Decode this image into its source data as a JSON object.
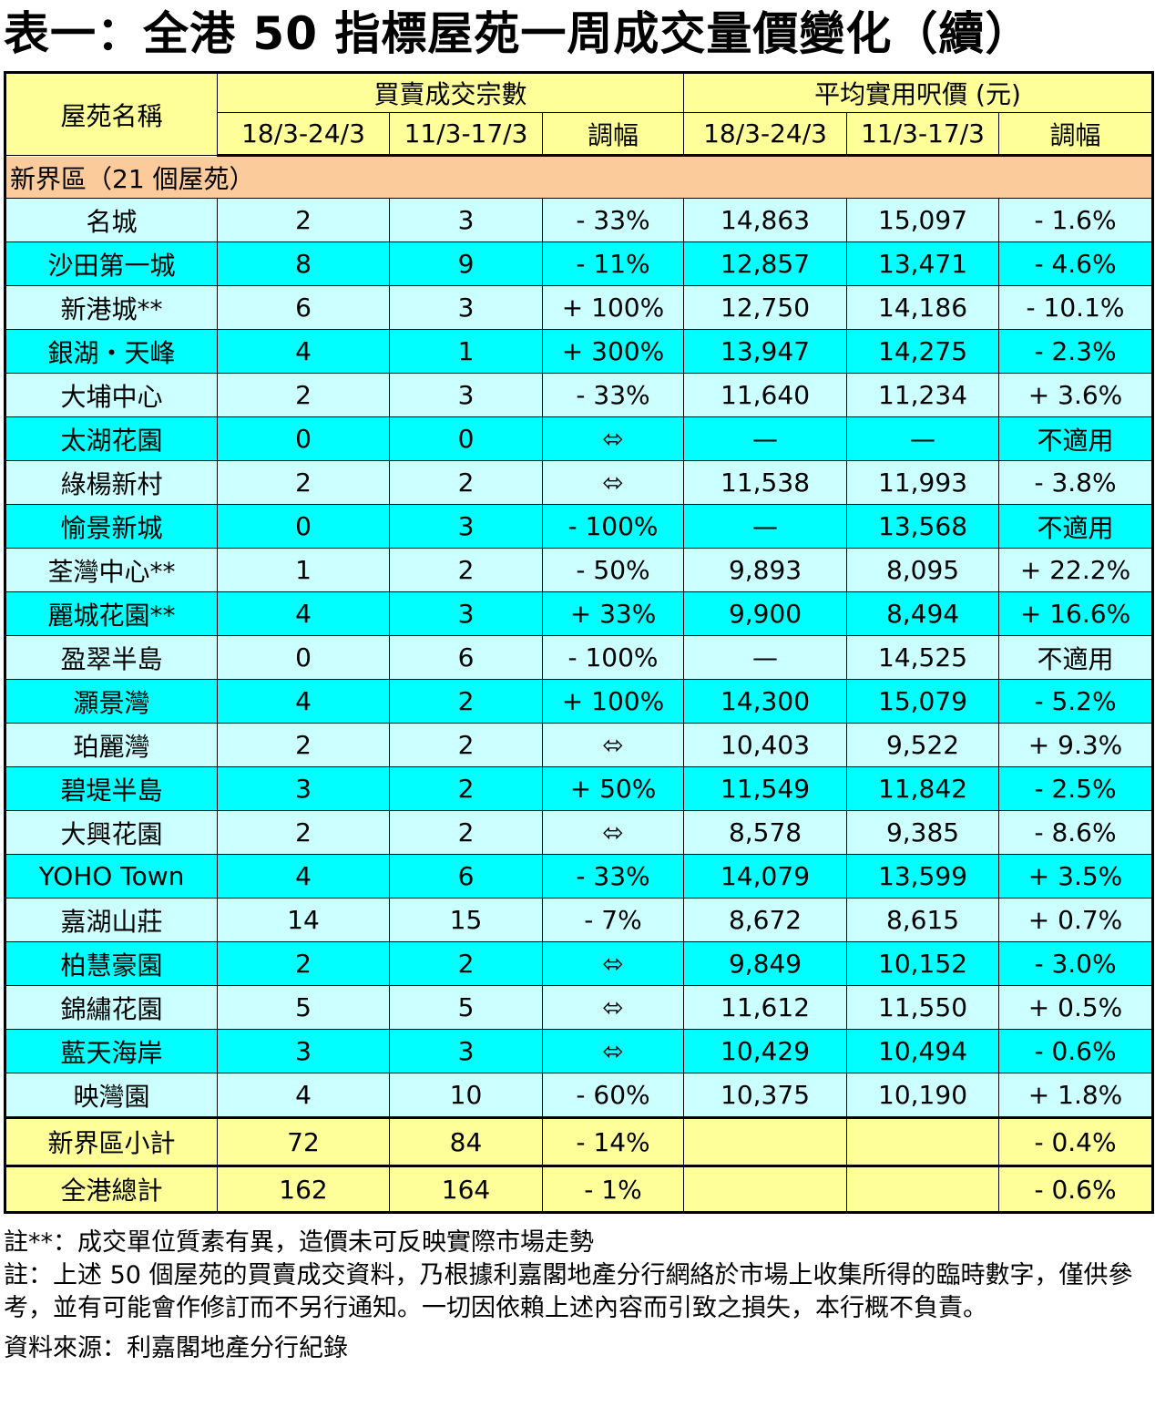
{
  "title": "表一：全港 50 指標屋苑一周成交量價變化（續）",
  "header": {
    "estate_col": "屋苑名稱",
    "volume_group": "買賣成交宗數",
    "price_group": "平均實用呎價 (元)",
    "periods": [
      "18/3-24/3",
      "11/3-17/3",
      "調幅",
      "18/3-24/3",
      "11/3-17/3",
      "調幅"
    ]
  },
  "section": "新界區（21 個屋苑）",
  "rows": [
    {
      "name": "名城",
      "v1": "2",
      "v2": "3",
      "vc": "- 33%",
      "p1": "14,863",
      "p2": "15,097",
      "pc": "- 1.6%"
    },
    {
      "name": "沙田第一城",
      "v1": "8",
      "v2": "9",
      "vc": "- 11%",
      "p1": "12,857",
      "p2": "13,471",
      "pc": "- 4.6%"
    },
    {
      "name": "新港城**",
      "v1": "6",
      "v2": "3",
      "vc": "+ 100%",
      "p1": "12,750",
      "p2": "14,186",
      "pc": "- 10.1%"
    },
    {
      "name": "銀湖・天峰",
      "v1": "4",
      "v2": "1",
      "vc": "+ 300%",
      "p1": "13,947",
      "p2": "14,275",
      "pc": "- 2.3%"
    },
    {
      "name": "大埔中心",
      "v1": "2",
      "v2": "3",
      "vc": "- 33%",
      "p1": "11,640",
      "p2": "11,234",
      "pc": "+ 3.6%"
    },
    {
      "name": "太湖花園",
      "v1": "0",
      "v2": "0",
      "vc": "⬄",
      "p1": "—",
      "p2": "—",
      "pc": "不適用"
    },
    {
      "name": "綠楊新村",
      "v1": "2",
      "v2": "2",
      "vc": "⬄",
      "p1": "11,538",
      "p2": "11,993",
      "pc": "- 3.8%"
    },
    {
      "name": "愉景新城",
      "v1": "0",
      "v2": "3",
      "vc": "- 100%",
      "p1": "—",
      "p2": "13,568",
      "pc": "不適用"
    },
    {
      "name": "荃灣中心**",
      "v1": "1",
      "v2": "2",
      "vc": "- 50%",
      "p1": "9,893",
      "p2": "8,095",
      "pc": "+ 22.2%"
    },
    {
      "name": "麗城花園**",
      "v1": "4",
      "v2": "3",
      "vc": "+ 33%",
      "p1": "9,900",
      "p2": "8,494",
      "pc": "+ 16.6%"
    },
    {
      "name": "盈翠半島",
      "v1": "0",
      "v2": "6",
      "vc": "- 100%",
      "p1": "—",
      "p2": "14,525",
      "pc": "不適用"
    },
    {
      "name": "灝景灣",
      "v1": "4",
      "v2": "2",
      "vc": "+ 100%",
      "p1": "14,300",
      "p2": "15,079",
      "pc": "- 5.2%"
    },
    {
      "name": "珀麗灣",
      "v1": "2",
      "v2": "2",
      "vc": "⬄",
      "p1": "10,403",
      "p2": "9,522",
      "pc": "+ 9.3%"
    },
    {
      "name": "碧堤半島",
      "v1": "3",
      "v2": "2",
      "vc": "+ 50%",
      "p1": "11,549",
      "p2": "11,842",
      "pc": "- 2.5%"
    },
    {
      "name": "大興花園",
      "v1": "2",
      "v2": "2",
      "vc": "⬄",
      "p1": "8,578",
      "p2": "9,385",
      "pc": "- 8.6%"
    },
    {
      "name": "YOHO Town",
      "v1": "4",
      "v2": "6",
      "vc": "- 33%",
      "p1": "14,079",
      "p2": "13,599",
      "pc": "+ 3.5%"
    },
    {
      "name": "嘉湖山莊",
      "v1": "14",
      "v2": "15",
      "vc": "- 7%",
      "p1": "8,672",
      "p2": "8,615",
      "pc": "+ 0.7%"
    },
    {
      "name": "柏慧豪園",
      "v1": "2",
      "v2": "2",
      "vc": "⬄",
      "p1": "9,849",
      "p2": "10,152",
      "pc": "- 3.0%"
    },
    {
      "name": "錦繡花園",
      "v1": "5",
      "v2": "5",
      "vc": "⬄",
      "p1": "11,612",
      "p2": "11,550",
      "pc": "+ 0.5%"
    },
    {
      "name": "藍天海岸",
      "v1": "3",
      "v2": "3",
      "vc": "⬄",
      "p1": "10,429",
      "p2": "10,494",
      "pc": "- 0.6%"
    },
    {
      "name": "映灣園",
      "v1": "4",
      "v2": "10",
      "vc": "- 60%",
      "p1": "10,375",
      "p2": "10,190",
      "pc": "+ 1.8%"
    }
  ],
  "subtotal": {
    "name": "新界區小計",
    "v1": "72",
    "v2": "84",
    "vc": "- 14%",
    "p1": "",
    "p2": "",
    "pc": "- 0.4%"
  },
  "total": {
    "name": "全港總計",
    "v1": "162",
    "v2": "164",
    "vc": "- 1%",
    "p1": "",
    "p2": "",
    "pc": "- 0.6%"
  },
  "notes": {
    "note1": "註**：成交單位質素有異，造價未可反映實際市場走勢",
    "note2": "註：上述 50 個屋苑的買賣成交資料，乃根據利嘉閣地產分行網絡於市場上收集所得的臨時數字，僅供參考，並有可能會作修訂而不另行通知。一切因依賴上述內容而引致之損失，本行概不負責。",
    "source": "資料來源：利嘉閣地產分行紀錄"
  }
}
